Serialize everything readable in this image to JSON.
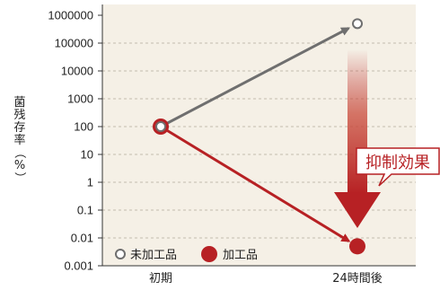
{
  "chart_data": {
    "type": "line",
    "categories": [
      "初期",
      "24時間後"
    ],
    "ylabel": "菌残存率（%）",
    "yscale": "log",
    "ylim": [
      0.001,
      1000000
    ],
    "y_ticks": [
      "1000000",
      "100000",
      "10000",
      "1000",
      "100",
      "10",
      "1",
      "0.1",
      "0.01",
      "0.001"
    ],
    "series": [
      {
        "name": "未加工品",
        "values": [
          100,
          500000
        ],
        "color": "#6f6f6f",
        "marker": "open-circle"
      },
      {
        "name": "加工品",
        "values": [
          100,
          0.005
        ],
        "color": "#b72124",
        "marker": "filled-circle"
      }
    ],
    "annotation": "抑制効果",
    "grid": "horizontal-dashed",
    "legend": "bottom-left",
    "colors": {
      "background": "#f5f0e6",
      "gray": "#6f6f6f",
      "red": "#b72124"
    }
  }
}
